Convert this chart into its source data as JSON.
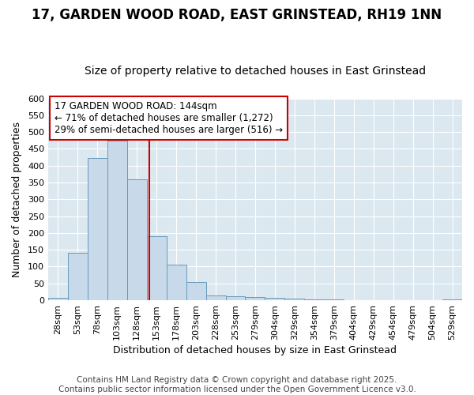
{
  "title": "17, GARDEN WOOD ROAD, EAST GRINSTEAD, RH19 1NN",
  "subtitle": "Size of property relative to detached houses in East Grinstead",
  "xlabel": "Distribution of detached houses by size in East Grinstead",
  "ylabel": "Number of detached properties",
  "footer": "Contains HM Land Registry data © Crown copyright and database right 2025.\nContains public sector information licensed under the Open Government Licence v3.0.",
  "categories": [
    "28sqm",
    "53sqm",
    "78sqm",
    "103sqm",
    "128sqm",
    "153sqm",
    "178sqm",
    "203sqm",
    "228sqm",
    "253sqm",
    "279sqm",
    "304sqm",
    "329sqm",
    "354sqm",
    "379sqm",
    "404sqm",
    "429sqm",
    "454sqm",
    "479sqm",
    "504sqm",
    "529sqm"
  ],
  "values": [
    8,
    142,
    422,
    474,
    360,
    190,
    105,
    54,
    14,
    11,
    9,
    8,
    4,
    3,
    2,
    0,
    0,
    0,
    0,
    0,
    3
  ],
  "bar_color": "#c8daea",
  "bar_edge_color": "#6699bb",
  "vline_color": "#cc0000",
  "annotation_title": "17 GARDEN WOOD ROAD: 144sqm",
  "annotation_line1": "← 71% of detached houses are smaller (1,272)",
  "annotation_line2": "29% of semi-detached houses are larger (516) →",
  "ylim": [
    0,
    600
  ],
  "yticks": [
    0,
    50,
    100,
    150,
    200,
    250,
    300,
    350,
    400,
    450,
    500,
    550,
    600
  ],
  "background_color": "#dce8f0",
  "grid_color": "#ffffff",
  "fig_bg_color": "#ffffff",
  "title_fontsize": 12,
  "subtitle_fontsize": 10,
  "axis_fontsize": 9,
  "tick_fontsize": 8,
  "footer_fontsize": 7.5,
  "ann_fontsize": 8.5
}
